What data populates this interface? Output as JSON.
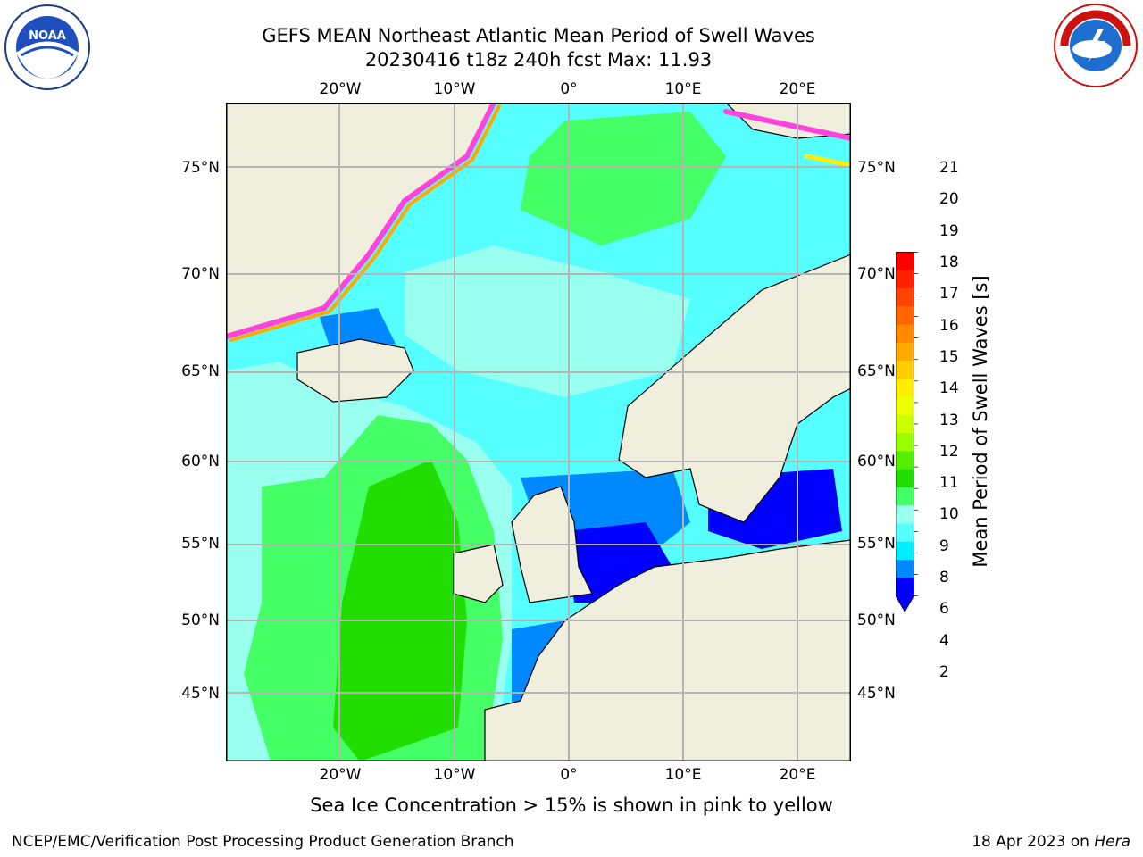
{
  "title_line1": "GEFS MEAN Northeast Atlantic Mean Period of Swell Waves",
  "title_line2": "20230416 t18z 240h fcst   Max: 11.93",
  "lon_ticks": [
    "20°W",
    "10°W",
    "0°",
    "10°E",
    "20°E"
  ],
  "lat_ticks": [
    "75°N",
    "70°N",
    "65°N",
    "60°N",
    "55°N",
    "50°N",
    "45°N"
  ],
  "colorbar": {
    "label": "Mean Period of Swell Waves [s]",
    "ticks": [
      "21",
      "20",
      "19",
      "18",
      "17",
      "16",
      "15",
      "14",
      "13",
      "12",
      "11",
      "10",
      "9",
      "8",
      "6",
      "4",
      "2"
    ],
    "colors": [
      "#ff0000",
      "#ff2200",
      "#ff4400",
      "#ff6600",
      "#ff8800",
      "#ffaa00",
      "#ffcc00",
      "#ffee00",
      "#eeff00",
      "#ccff00",
      "#99ff00",
      "#55ee00",
      "#22dd00",
      "#44ff66",
      "#99ffee",
      "#55ffff",
      "#00eeff",
      "#0088ff",
      "#0000ff"
    ],
    "extend_color": "#0000ff"
  },
  "map": {
    "ocean_colors": [
      "#55ffff",
      "#99ffee",
      "#44ff66",
      "#22dd00",
      "#0088ff",
      "#0000ff"
    ],
    "land_color": "#f0eedc",
    "ice_colors": [
      "#ff44dd",
      "#ffaa00",
      "#ffee00"
    ],
    "grid_color": "#b4b4b4"
  },
  "note": "Sea Ice Concentration > 15% is shown in pink to yellow",
  "footer_left": "NCEP/EMC/Verification Post Processing Product Generation Branch",
  "footer_date": "18 Apr 2023 on ",
  "footer_host": "Hera",
  "logo_left": "NOAA",
  "logo_right": "NATIONAL WEATHER SERVICE"
}
